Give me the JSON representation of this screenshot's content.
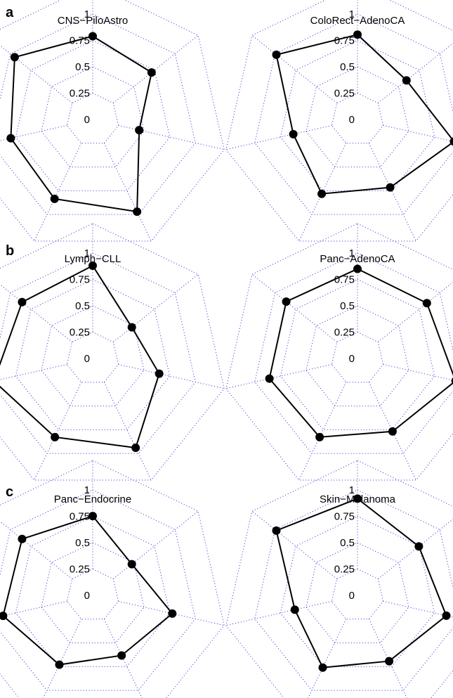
{
  "panel_letters": [
    "a",
    "b",
    "c"
  ],
  "colors": {
    "grid": "#2a2ad0",
    "series": "#000000"
  },
  "chart_data": [
    {
      "type": "radar",
      "title": "CNS−PiloAstro",
      "ticks": [
        "0",
        "0.25",
        "0.5",
        "0.75",
        "1"
      ],
      "rmax": 1,
      "axes": 7,
      "grid": true,
      "values": [
        0.72,
        0.62,
        0.27,
        0.96,
        0.78,
        0.73,
        0.93
      ]
    },
    {
      "type": "radar",
      "title": "ColoRect−AdenoCA",
      "ticks": [
        "0",
        "0.25",
        "0.5",
        "0.75",
        "1"
      ],
      "rmax": 1,
      "axes": 7,
      "grid": true,
      "values": [
        0.74,
        0.46,
        0.92,
        0.62,
        0.71,
        0.5,
        0.98
      ]
    },
    {
      "type": "radar",
      "title": "Lymph−CLL",
      "ticks": [
        "0",
        "0.25",
        "0.5",
        "0.75",
        "1"
      ],
      "rmax": 1,
      "axes": 7,
      "grid": true,
      "values": [
        0.84,
        0.3,
        0.53,
        0.92,
        0.77,
        0.95,
        0.81
      ]
    },
    {
      "type": "radar",
      "title": "Panc−AdenoCA",
      "ticks": [
        "0",
        "0.25",
        "0.5",
        "0.75",
        "1"
      ],
      "rmax": 1,
      "axes": 7,
      "grid": true,
      "values": [
        0.8,
        0.79,
        0.94,
        0.69,
        0.77,
        0.81,
        0.82
      ]
    },
    {
      "type": "radar",
      "title": "Panc−Endocrine",
      "ticks": [
        "0",
        "0.25",
        "0.5",
        "0.75",
        "1"
      ],
      "rmax": 1,
      "axes": 7,
      "grid": true,
      "values": [
        0.67,
        0.3,
        0.7,
        0.51,
        0.64,
        0.83,
        0.81
      ]
    },
    {
      "type": "radar",
      "title": "Skin−Melanoma",
      "ticks": [
        "0",
        "0.25",
        "0.5",
        "0.75",
        "1"
      ],
      "rmax": 1,
      "axes": 7,
      "grid": true,
      "values": [
        0.89,
        0.66,
        0.82,
        0.59,
        0.68,
        0.48,
        0.98
      ]
    }
  ]
}
